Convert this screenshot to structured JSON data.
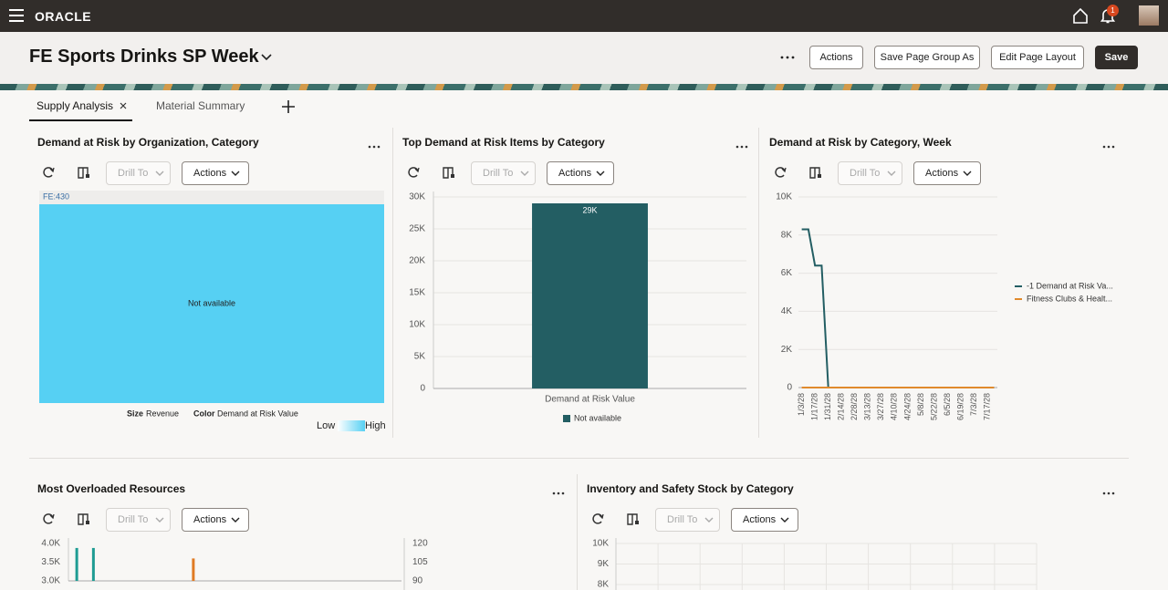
{
  "header": {
    "logo": "ORACLE",
    "notification_count": 1,
    "title": "FE Sports Drinks SP Week",
    "buttons": [
      "Actions",
      "Save Page Group As",
      "Edit Page Layout",
      "Save"
    ]
  },
  "tabs": [
    "Supply Analysis",
    "Material Summary"
  ],
  "panels": [
    {
      "title": "Demand at Risk by Organization, Category",
      "toolbar": {
        "drill": "Drill To",
        "actions": "Actions"
      },
      "chart": {
        "type": "treemap",
        "node_label": "FE:430",
        "message": "Not available",
        "color": "#56d0f3",
        "legend": {
          "size_label": "Size",
          "size_value": "Revenue",
          "color_label": "Color",
          "color_value": "Demand at Risk Value",
          "low": "Low",
          "high": "High"
        }
      }
    },
    {
      "title": "Top Demand at Risk Items by Category",
      "toolbar": {
        "drill": "Drill To",
        "actions": "Actions"
      },
      "chart": {
        "type": "bar",
        "categories": [
          "Demand at Risk Value"
        ],
        "series": [
          {
            "name": "Not available",
            "color": "#235e63",
            "values": [
              29000
            ],
            "value_labels": [
              "29K"
            ]
          }
        ],
        "ylim": [
          0,
          30000
        ],
        "yticks": [
          0,
          {
            "value": 5000,
            "label": "5K"
          },
          {
            "value": 10000,
            "label": "10K"
          },
          {
            "value": 15000,
            "label": "15K"
          },
          {
            "value": 20000,
            "label": "20K"
          },
          {
            "value": 25000,
            "label": "25K"
          },
          {
            "value": 30000,
            "label": "30K"
          }
        ],
        "grid": true
      }
    },
    {
      "title": "Demand at Risk by Category, Week",
      "toolbar": {
        "drill": "Drill To",
        "actions": "Actions"
      },
      "chart": {
        "type": "line",
        "categories": [
          "1/3/28",
          null,
          "1/17/28",
          null,
          "1/31/28",
          null,
          "2/14/28",
          null,
          "2/28/28",
          null,
          "3/13/28",
          null,
          "3/27/28",
          null,
          "4/10/28",
          null,
          "4/24/28",
          null,
          "5/8/28",
          null,
          "5/22/28",
          null,
          "6/5/28",
          null,
          "6/19/28",
          null,
          "7/3/28",
          null,
          "7/17/28",
          null
        ],
        "series": [
          {
            "name": "-1 Demand at Risk Va...",
            "color": "#235e63",
            "values": [
              8300,
              8300,
              6400,
              6400,
              0,
              0,
              0,
              0,
              0,
              0,
              0,
              0,
              0,
              0,
              0,
              0,
              0,
              0,
              0,
              0,
              0,
              0,
              0,
              0,
              0,
              0,
              0,
              0,
              0,
              0
            ]
          },
          {
            "name": "Fitness Clubs & Healt...",
            "color": "#e08a2c",
            "values": [
              0,
              0,
              0,
              0,
              0,
              0,
              0,
              0,
              0,
              0,
              0,
              0,
              0,
              0,
              0,
              0,
              0,
              0,
              0,
              0,
              0,
              0,
              0,
              0,
              0,
              0,
              0,
              0,
              0,
              0
            ]
          }
        ],
        "ylim": [
          0,
          10000
        ],
        "yticks": [
          0,
          {
            "value": 2000,
            "label": "2K"
          },
          {
            "value": 4000,
            "label": "4K"
          },
          {
            "value": 6000,
            "label": "6K"
          },
          {
            "value": 8000,
            "label": "8K"
          },
          {
            "value": 10000,
            "label": "10K"
          }
        ],
        "grid": true
      }
    },
    {
      "title": "Most Overloaded Resources",
      "toolbar": {
        "drill": "Drill To",
        "actions": "Actions"
      },
      "chart": {
        "type": "bar",
        "categories": [
          null,
          null,
          null,
          null,
          null,
          null,
          null,
          null,
          null,
          null,
          null,
          null,
          null,
          null,
          null,
          null,
          null,
          null,
          null,
          null
        ],
        "series": [
          {
            "color": "#1f9c93",
            "values": [
              3880,
              3880,
              null,
              null,
              null,
              null,
              null,
              null,
              null,
              null,
              null,
              null,
              null,
              null,
              null,
              null,
              null,
              null,
              null,
              null
            ]
          },
          {
            "color": "#e07b24",
            "values": [
              null,
              null,
              null,
              null,
              null,
              null,
              null,
              3600,
              null,
              null,
              null,
              null,
              null,
              null,
              null,
              null,
              null,
              null,
              null,
              null
            ]
          }
        ],
        "ylim": [
          3000,
          4000
        ],
        "yticks": [
          {
            "value": 3000,
            "label": "3.0K"
          },
          {
            "value": 3500,
            "label": "3.5K"
          },
          {
            "value": 4000,
            "label": "4.0K"
          }
        ],
        "y2lim": [
          90,
          120
        ],
        "y2ticks": [
          90,
          105,
          120
        ]
      }
    },
    {
      "title": "Inventory and Safety Stock by Category",
      "toolbar": {
        "drill": "Drill To",
        "actions": "Actions"
      },
      "chart": {
        "type": "empty",
        "ylim": [
          8000,
          10000
        ],
        "yticks": [
          {
            "value": 8000,
            "label": "8K"
          },
          {
            "value": 9000,
            "label": "9K"
          },
          {
            "value": 10000,
            "label": "10K"
          }
        ],
        "grid": true
      }
    }
  ]
}
